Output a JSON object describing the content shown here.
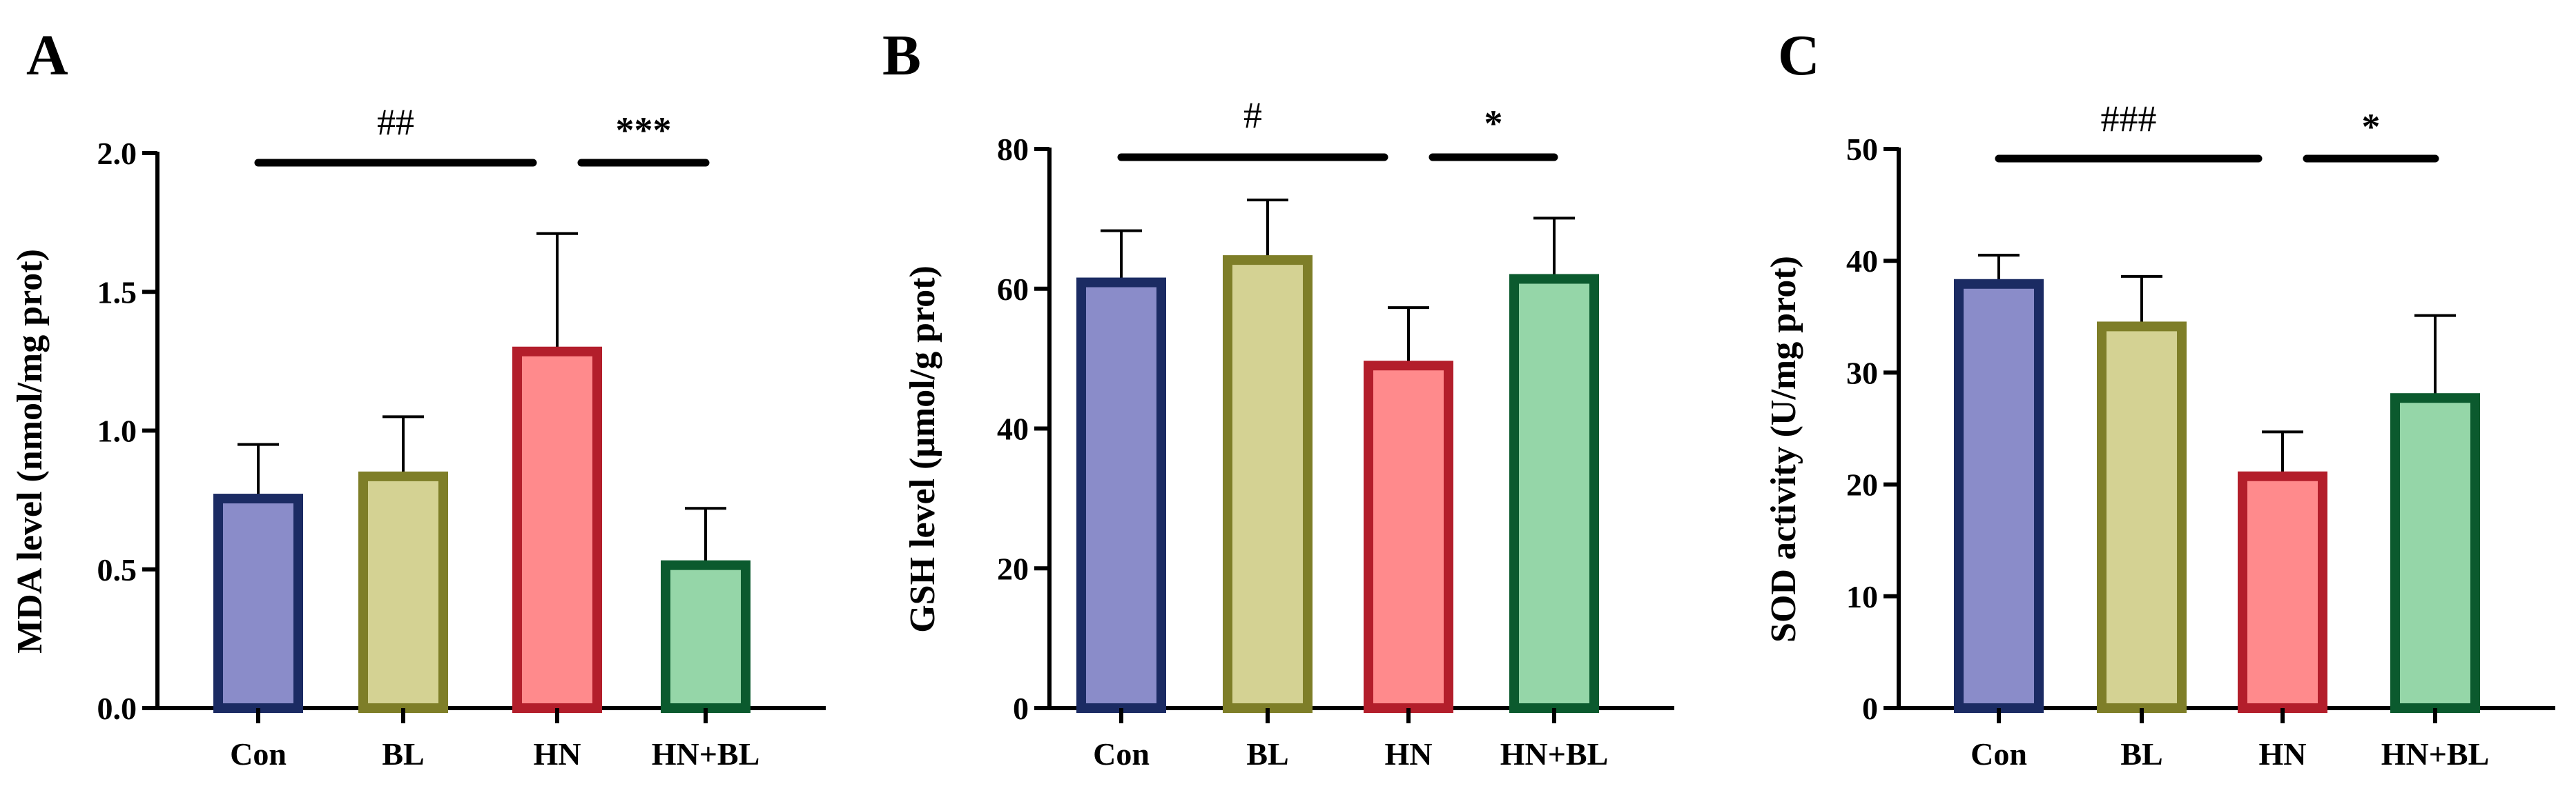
{
  "chart_data": [
    {
      "panel": "A",
      "type": "bar",
      "categories": [
        "Con",
        "BL",
        "HN",
        "HN+BL"
      ],
      "values": [
        0.77,
        0.85,
        1.3,
        0.53
      ],
      "errors": [
        0.18,
        0.2,
        0.41,
        0.19
      ],
      "ylabel": "MDA level (nmol/mg prot)",
      "ylim": [
        0,
        2.0
      ],
      "yticks": [
        0,
        0.5,
        1.0,
        1.5,
        2.0
      ],
      "ytick_labels": [
        "0.0",
        "0.5",
        "1.0",
        "1.5",
        "2.0"
      ],
      "significance": [
        {
          "from": 0,
          "to": 2,
          "label": "##"
        },
        {
          "from": 2,
          "to": 3,
          "label": "***"
        }
      ]
    },
    {
      "panel": "B",
      "type": "bar",
      "categories": [
        "Con",
        "BL",
        "HN",
        "HN+BL"
      ],
      "values": [
        61.5,
        64.7,
        49.6,
        62.0
      ],
      "errors": [
        6.8,
        8.0,
        7.7,
        8.1
      ],
      "ylabel": "GSH level (μmol/g prot)",
      "ylim": [
        0,
        80
      ],
      "yticks": [
        0,
        20,
        40,
        60,
        80
      ],
      "ytick_labels": [
        "0",
        "20",
        "40",
        "60",
        "80"
      ],
      "significance": [
        {
          "from": 0,
          "to": 2,
          "label": "#"
        },
        {
          "from": 2,
          "to": 3,
          "label": "*"
        }
      ]
    },
    {
      "panel": "C",
      "type": "bar",
      "categories": [
        "Con",
        "BL",
        "HN",
        "HN+BL"
      ],
      "values": [
        38.3,
        34.5,
        21.1,
        28.1
      ],
      "errors": [
        2.2,
        4.1,
        3.6,
        7.0
      ],
      "ylabel": "SOD activity (U/mg prot)",
      "ylim": [
        0,
        50
      ],
      "yticks": [
        0,
        10,
        20,
        30,
        40,
        50
      ],
      "ytick_labels": [
        "0",
        "10",
        "20",
        "30",
        "40",
        "50"
      ],
      "significance": [
        {
          "from": 0,
          "to": 2,
          "label": "###"
        },
        {
          "from": 2,
          "to": 3,
          "label": "*"
        }
      ]
    }
  ],
  "colors": {
    "fills": [
      "#8a8cc9",
      "#d4d293",
      "#ff8a8c",
      "#95d6a8"
    ],
    "strokes": [
      "#1b2b63",
      "#7e7e28",
      "#b31e2b",
      "#0b5a2e"
    ],
    "axis": "#000000"
  }
}
